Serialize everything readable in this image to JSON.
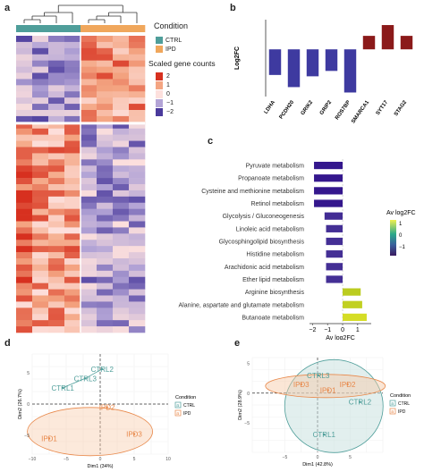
{
  "panels": {
    "a": "a",
    "b": "b",
    "c": "c",
    "d": "d",
    "e": "e"
  },
  "legend_a": {
    "condition_title": "Condition",
    "conditions": [
      {
        "label": "CTRL",
        "color": "#4f9e9a"
      },
      {
        "label": "IPD",
        "color": "#f0a75c"
      }
    ],
    "scale_title": "Scaled gene counts",
    "scale_ticks": [
      "2",
      "1",
      "0",
      "−1",
      "−2"
    ],
    "scale_colors": [
      "#d7301f",
      "#f4a582",
      "#fde0dd",
      "#b3a4d6",
      "#4a3a9c"
    ]
  },
  "chart_data": [
    {
      "id": "a",
      "type": "heatmap",
      "column_groups": [
        "CTRL",
        "CTRL",
        "CTRL",
        "CTRL",
        "IPD",
        "IPD",
        "IPD",
        "IPD"
      ],
      "row_count": 48,
      "value_range": [
        -2,
        2
      ]
    },
    {
      "id": "b",
      "type": "bar",
      "categories": [
        "LDHA",
        "PCDH20",
        "GRIK2",
        "GRIP2",
        "ROS7BP",
        "SMARCA1",
        "SYT17",
        "STAG2"
      ],
      "values": [
        -1.9,
        -2.8,
        -2.0,
        -1.6,
        -3.2,
        1.0,
        1.8,
        1.0
      ],
      "ylabel": "Log2FC",
      "colors": {
        "negative": "#3e3aa0",
        "positive": "#8b1a1a"
      }
    },
    {
      "id": "c",
      "type": "bar",
      "orientation": "horizontal",
      "categories": [
        "Pyruvate metabolism",
        "Propanoate metabolism",
        "Cysteine and methionine metabolism",
        "Retinol metabolism",
        "Glycolysis / Gluconeogenesis",
        "Linoleic acid metabolism",
        "Glycosphingolipid biosynthesis",
        "Histidine metabolism",
        "Arachidonic acid metabolism",
        "Ether lipid metabolism",
        "Arginine biosynthesis",
        "Alanine, aspartate and glutamate metabolism",
        "Butanoate metabolism"
      ],
      "values": [
        -1.9,
        -1.9,
        -1.9,
        -1.9,
        -1.2,
        -1.1,
        -1.1,
        -1.1,
        -1.1,
        -1.1,
        1.2,
        1.3,
        1.6
      ],
      "xlabel": "Av log2FC",
      "xlim": [
        -2.2,
        1.9
      ],
      "xticks": [
        "−2",
        "−1",
        "0",
        "1"
      ],
      "legend_title": "Av log2FC",
      "legend_ticks": [
        "1",
        "0",
        "−1"
      ]
    },
    {
      "id": "d",
      "type": "scatter",
      "xlabel": "Dim1 (34%)",
      "ylabel": "Dim2 (26.7%)",
      "xlim": [
        -10,
        10
      ],
      "ylim": [
        -8,
        8
      ],
      "xticks": [
        "−10",
        "−5",
        "0",
        "5",
        "10"
      ],
      "yticks": [
        "5",
        "0",
        "−5"
      ],
      "points": [
        {
          "label": "CTRL1",
          "group": "CTRL",
          "x": -5.5,
          "y": 2.6
        },
        {
          "label": "CTRL3",
          "group": "CTRL",
          "x": -2.2,
          "y": 4.1
        },
        {
          "label": "CTRL2",
          "group": "CTRL",
          "x": 0.3,
          "y": 5.6
        },
        {
          "label": "IPD2",
          "group": "IPD",
          "x": 1.0,
          "y": -0.5
        },
        {
          "label": "IPD1",
          "group": "IPD",
          "x": -7.5,
          "y": -5.5
        },
        {
          "label": "IPD3",
          "group": "IPD",
          "x": 5.0,
          "y": -4.8
        }
      ],
      "legend_title": "Condition",
      "legend_items": [
        "CTRL",
        "IPD"
      ]
    },
    {
      "id": "e",
      "type": "scatter",
      "xlabel": "Dim1 (42.8%)",
      "ylabel": "Dim2 (28.9%)",
      "xlim": [
        -10,
        10
      ],
      "ylim": [
        -10,
        6
      ],
      "xticks": [
        "−5",
        "0",
        "5"
      ],
      "yticks": [
        "5",
        "0",
        "−5"
      ],
      "points": [
        {
          "label": "CTRL3",
          "group": "CTRL",
          "x": 0.1,
          "y": 3.0
        },
        {
          "label": "CTRL2",
          "group": "CTRL",
          "x": 6.5,
          "y": -1.5
        },
        {
          "label": "CTRL1",
          "group": "CTRL",
          "x": 1.0,
          "y": -7.0
        },
        {
          "label": "IPD3",
          "group": "IPD",
          "x": -2.5,
          "y": 1.5
        },
        {
          "label": "IPD1",
          "group": "IPD",
          "x": 1.6,
          "y": 0.5
        },
        {
          "label": "IPD2",
          "group": "IPD",
          "x": 4.6,
          "y": 1.5
        }
      ],
      "legend_title": "Condition",
      "legend_items": [
        "CTRL",
        "IPD"
      ]
    }
  ]
}
